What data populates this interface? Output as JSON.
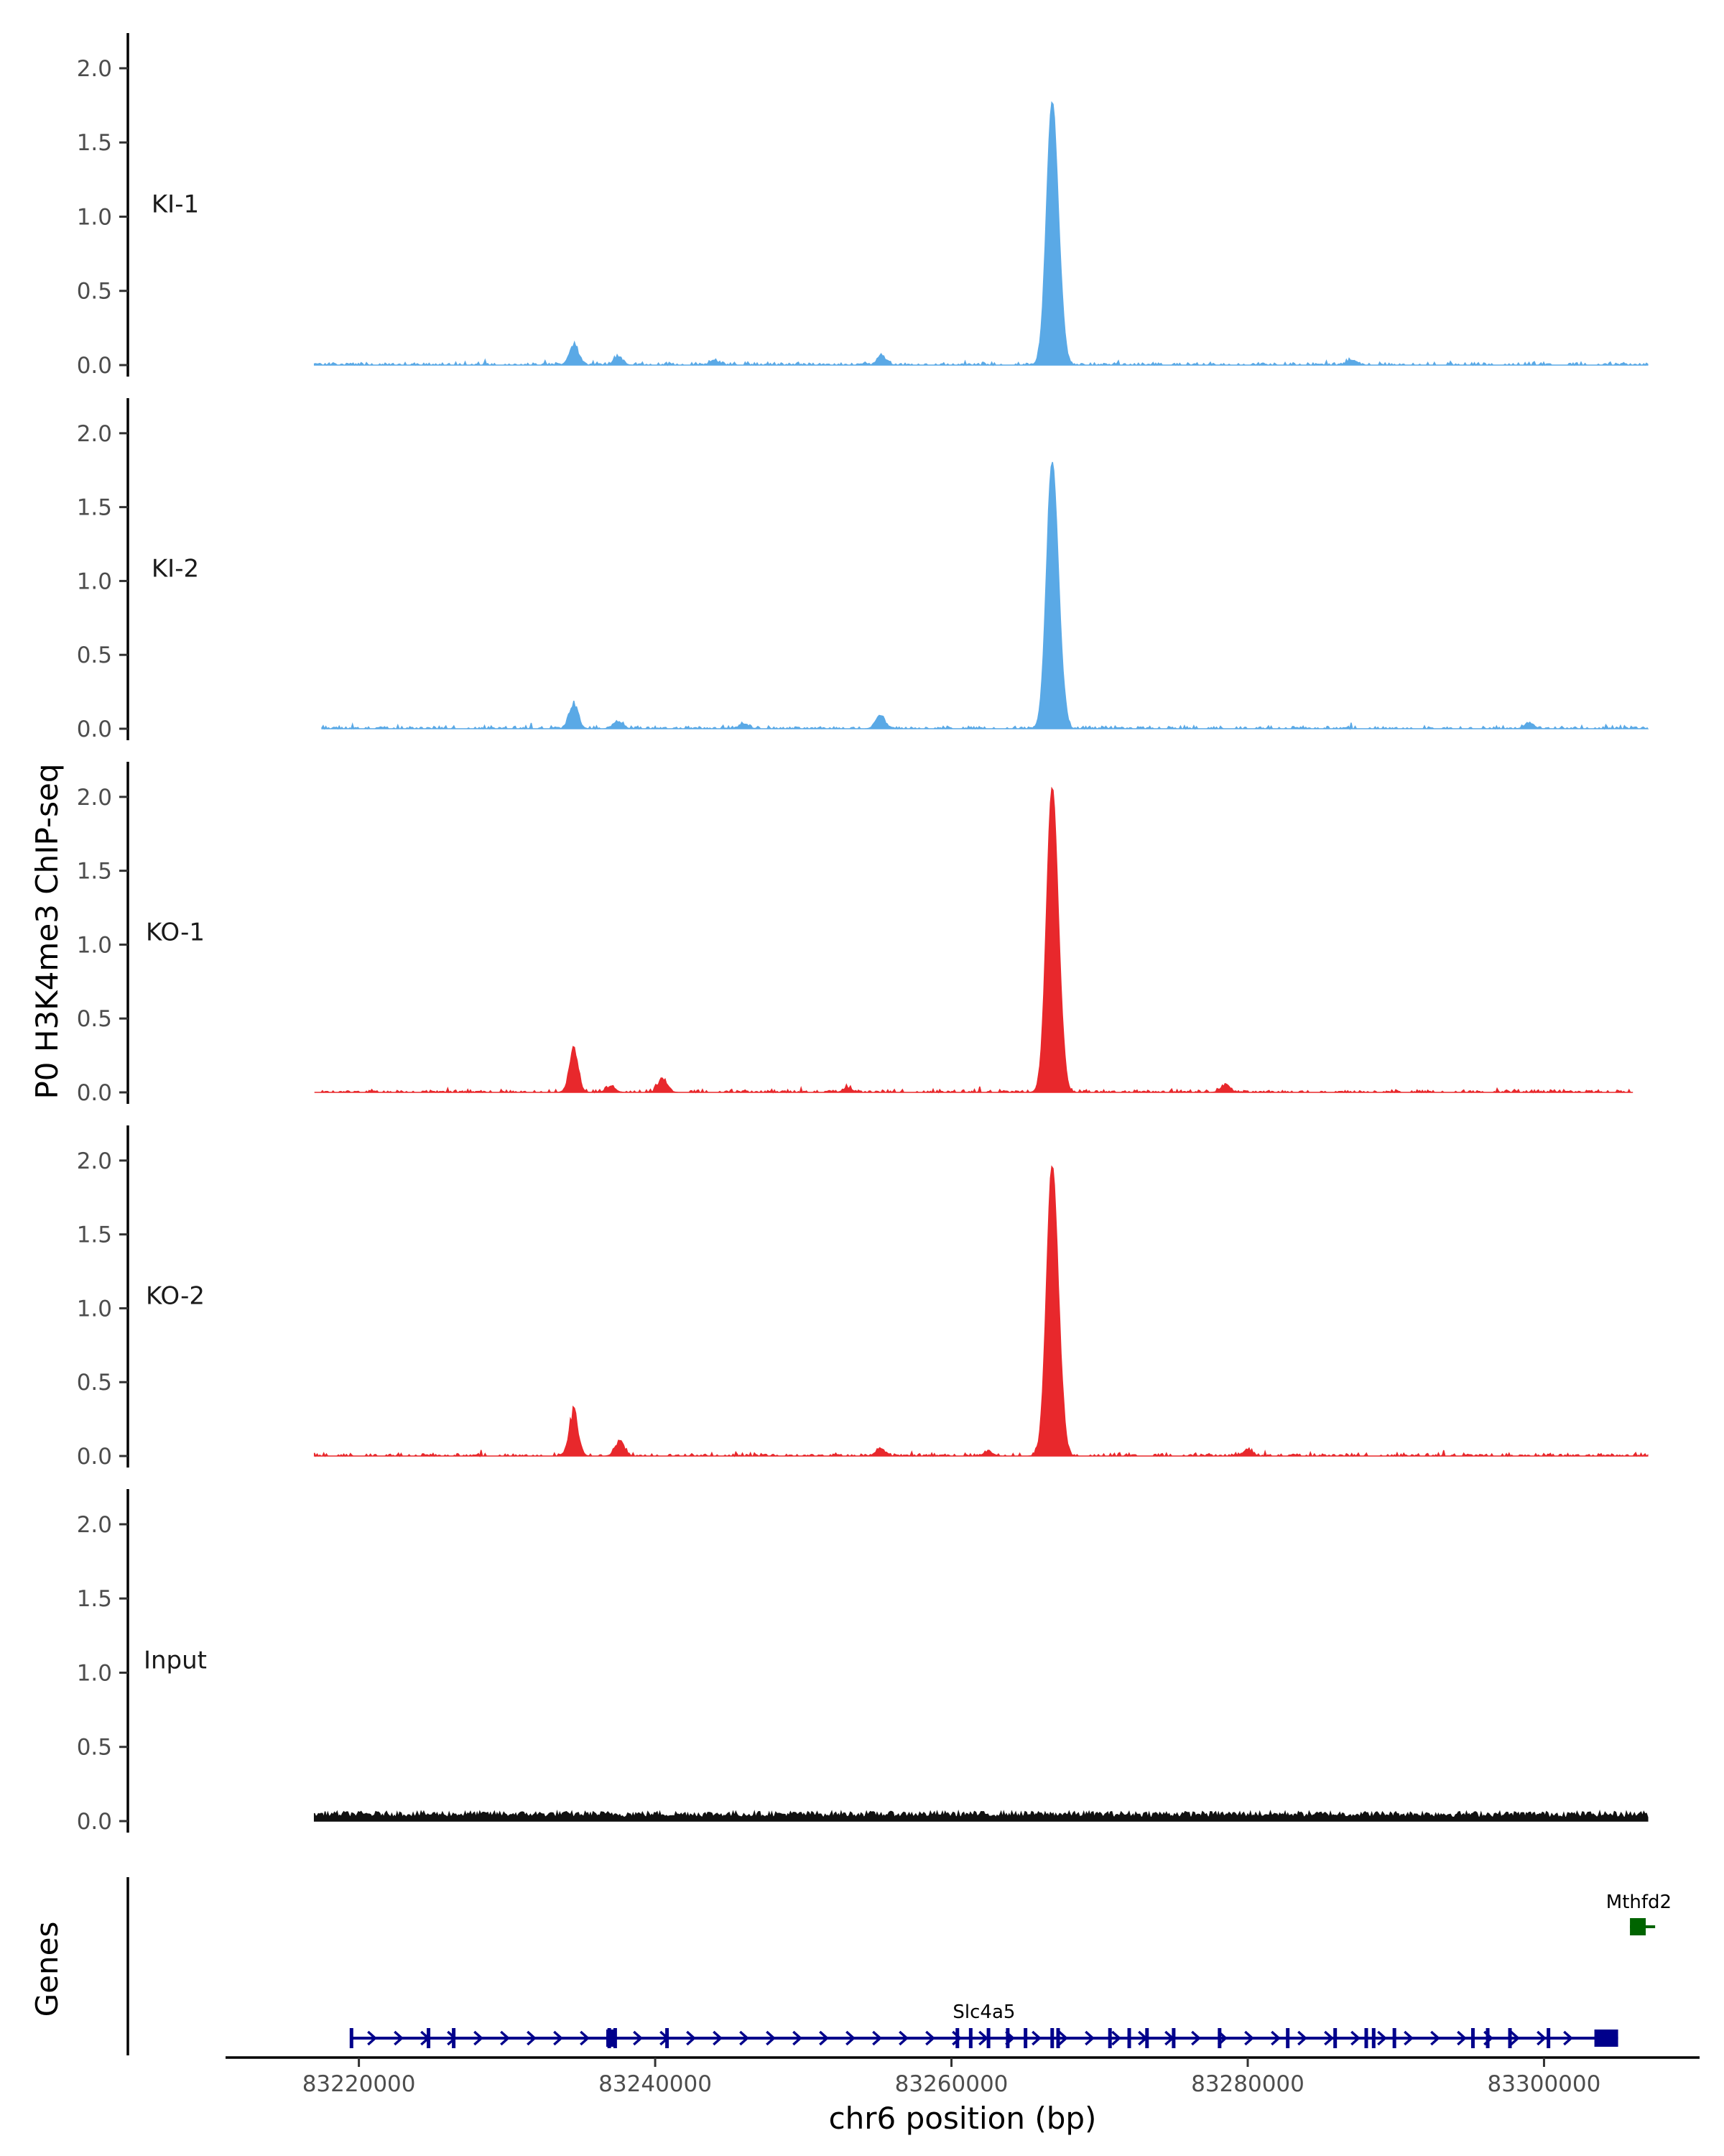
{
  "chart_data": {
    "type": "area",
    "ylabel": "P0 H3K4me3 ChIP-seq",
    "xlabel": "chr6 position (bp)",
    "ylim": [
      0,
      2.15
    ],
    "yticks": [
      "0.0",
      "0.5",
      "1.0",
      "1.5",
      "2.0"
    ],
    "xlim": [
      83211000,
      83310500
    ],
    "xticks": [
      83220000,
      83240000,
      83260000,
      83280000,
      83300000
    ],
    "xtick_labels": [
      "83220000",
      "83240000",
      "83260000",
      "83280000",
      "83300000"
    ],
    "genes_label": "Genes",
    "tracks": [
      {
        "name": "KI-1",
        "color": "#5aa9e6",
        "range": [
          83217000,
          83307000
        ],
        "peaks": [
          {
            "x": 83266800,
            "y": 1.77
          },
          {
            "x": 83234500,
            "y": 0.14
          },
          {
            "x": 83237500,
            "y": 0.05
          },
          {
            "x": 83255300,
            "y": 0.06
          },
          {
            "x": 83244000,
            "y": 0.03
          },
          {
            "x": 83287000,
            "y": 0.03
          }
        ]
      },
      {
        "name": "KI-2",
        "color": "#5aa9e6",
        "range": [
          83217500,
          83307000
        ],
        "peaks": [
          {
            "x": 83266800,
            "y": 1.8
          },
          {
            "x": 83234500,
            "y": 0.16
          },
          {
            "x": 83237500,
            "y": 0.05
          },
          {
            "x": 83255200,
            "y": 0.09
          },
          {
            "x": 83246000,
            "y": 0.03
          },
          {
            "x": 83299000,
            "y": 0.04
          }
        ]
      },
      {
        "name": "KO-1",
        "color": "#e8282c",
        "range": [
          83217000,
          83306000
        ],
        "peaks": [
          {
            "x": 83266800,
            "y": 2.06
          },
          {
            "x": 83234500,
            "y": 0.28
          },
          {
            "x": 83240500,
            "y": 0.09
          },
          {
            "x": 83237000,
            "y": 0.04
          },
          {
            "x": 83278500,
            "y": 0.05
          },
          {
            "x": 83253000,
            "y": 0.03
          }
        ]
      },
      {
        "name": "KO-2",
        "color": "#e8282c",
        "range": [
          83217000,
          83307000
        ],
        "peaks": [
          {
            "x": 83266800,
            "y": 1.96
          },
          {
            "x": 83234500,
            "y": 0.29
          },
          {
            "x": 83237600,
            "y": 0.1
          },
          {
            "x": 83255200,
            "y": 0.05
          },
          {
            "x": 83262500,
            "y": 0.03
          },
          {
            "x": 83280000,
            "y": 0.04
          }
        ]
      },
      {
        "name": "Input",
        "color": "#111111",
        "range": [
          83217000,
          83307000
        ],
        "peaks": [],
        "background": 0.045
      }
    ],
    "genes": [
      {
        "name": "Slc4a5",
        "color": "#00008b",
        "strand": "+",
        "start": 83219500,
        "end": 83305000,
        "exons": [
          83219500,
          83224700,
          83226400,
          83236900,
          83237300,
          83240800,
          83260400,
          83261300,
          83262500,
          83263800,
          83265000,
          83266800,
          83267200,
          83270700,
          83272000,
          83273200,
          83275000,
          83278100,
          83282700,
          83285900,
          83288000,
          83288500,
          83289900,
          83295200,
          83296200,
          83297700,
          83300300
        ]
      },
      {
        "name": "Mthfd2",
        "color": "#006400",
        "strand": "+",
        "start": 83305800,
        "end": 83307500,
        "exons": []
      }
    ]
  }
}
